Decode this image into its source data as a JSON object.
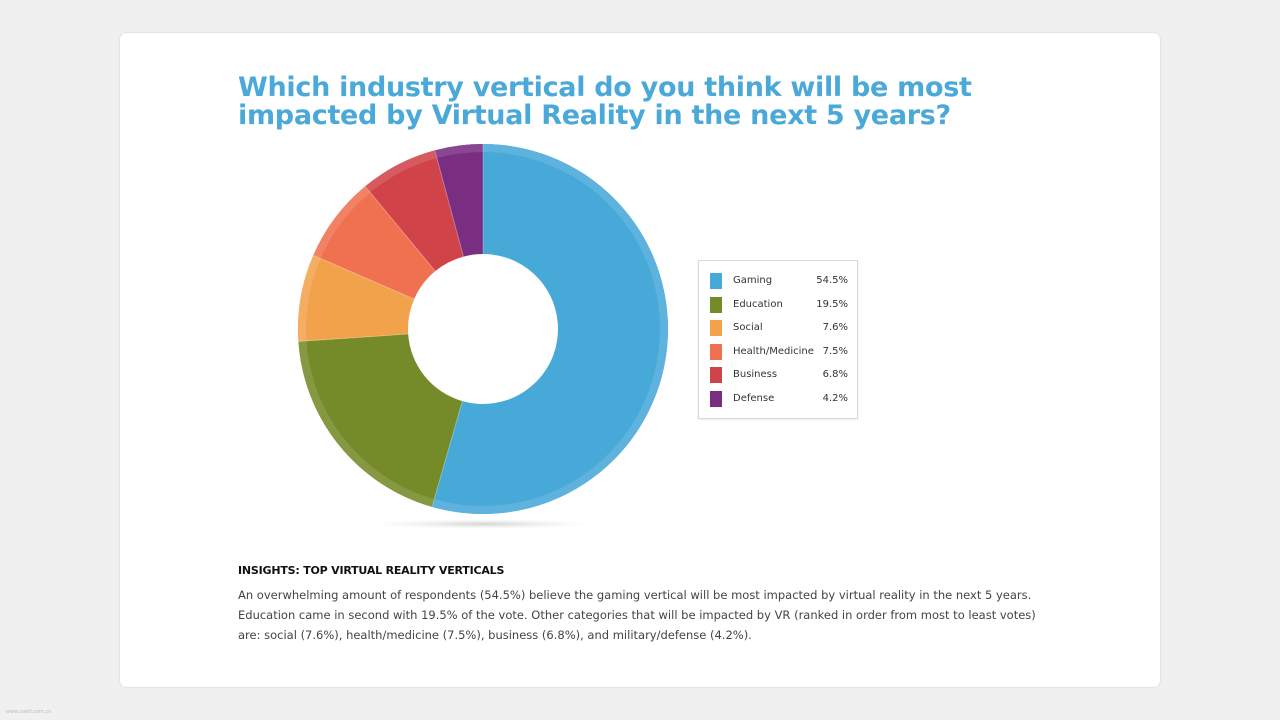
{
  "title": "Which industry vertical do you think will be most impacted by Virtual Reality in the next 5 years?",
  "chart_data": {
    "type": "pie",
    "donut": true,
    "categories": [
      "Gaming",
      "Education",
      "Social",
      "Health/Medicine",
      "Business",
      "Defense"
    ],
    "values": [
      54.5,
      19.5,
      7.6,
      7.5,
      6.8,
      4.2
    ],
    "value_labels": [
      "54.5%",
      "19.5%",
      "7.6%",
      "7.5%",
      "6.8%",
      "4.2%"
    ],
    "colors": [
      "#47a9d8",
      "#758a28",
      "#f3a24c",
      "#f07150",
      "#d04349",
      "#7a2e82"
    ],
    "legend": "right"
  },
  "insights": {
    "title": "INSIGHTS: TOP VIRTUAL REALITY VERTICALS",
    "text": "An overwhelming amount of respondents (54.5%) believe the gaming vertical will be most impacted by virtual reality in the next 5 years. Education came in second with 19.5% of the vote. Other categories that will be impacted by VR (ranked in order from most to least votes) are: social (7.6%), health/medicine (7.5%), business (6.8%), and military/defense (4.2%)."
  },
  "watermark": "www.useit.com.cn"
}
